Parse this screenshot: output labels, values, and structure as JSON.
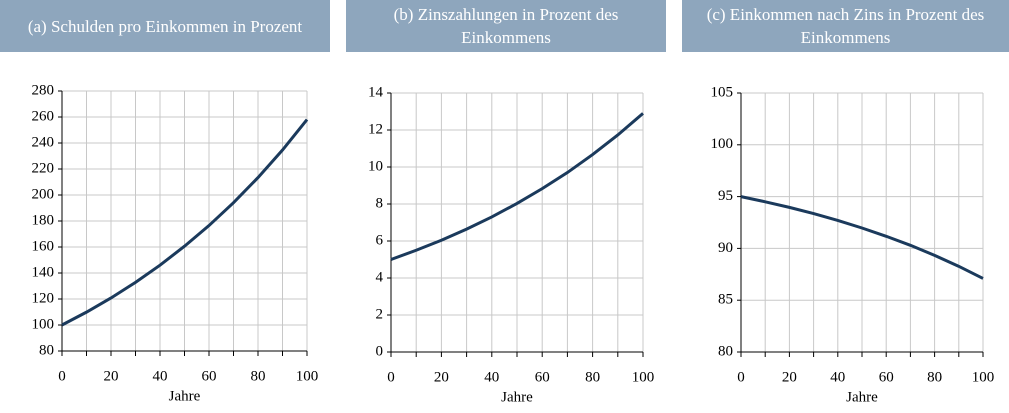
{
  "chart_data": [
    {
      "type": "line",
      "title": "(a) Schulden pro Einkommen in Prozent",
      "xlabel": "Jahre",
      "x": [
        0,
        10,
        20,
        30,
        40,
        50,
        60,
        70,
        80,
        90,
        100
      ],
      "series": [
        {
          "name": "Schulden pro Einkommen",
          "color": "#1b3a5c",
          "values": [
            100,
            109.9,
            120.8,
            132.8,
            146.0,
            160.6,
            176.5,
            194.1,
            213.4,
            234.6,
            258
          ]
        }
      ],
      "xlim": [
        0,
        100
      ],
      "xticks": [
        0,
        20,
        40,
        60,
        80,
        100
      ],
      "x_minor_ticks": [
        10,
        30,
        50,
        70,
        90
      ],
      "ylim": [
        80,
        280
      ],
      "yticks": [
        80,
        100,
        120,
        140,
        160,
        180,
        200,
        220,
        240,
        260,
        280
      ],
      "grid": true
    },
    {
      "type": "line",
      "title": "(b) Zinszahlungen in Prozent des Einkommens",
      "xlabel": "Jahre",
      "x": [
        0,
        10,
        20,
        30,
        40,
        50,
        60,
        70,
        80,
        90,
        100
      ],
      "series": [
        {
          "name": "Zinszahlungen",
          "color": "#1b3a5c",
          "values": [
            5,
            5.5,
            6.04,
            6.64,
            7.3,
            8.03,
            8.83,
            9.7,
            10.67,
            11.73,
            12.9
          ]
        }
      ],
      "xlim": [
        0,
        100
      ],
      "xticks": [
        0,
        20,
        40,
        60,
        80,
        100
      ],
      "x_minor_ticks": [
        10,
        30,
        50,
        70,
        90
      ],
      "ylim": [
        0,
        14
      ],
      "yticks": [
        0,
        2,
        4,
        6,
        8,
        10,
        12,
        14
      ],
      "grid": true
    },
    {
      "type": "line",
      "title": "(c) Einkommen nach Zins in Prozent des Einkommens",
      "xlabel": "Jahre",
      "x": [
        0,
        10,
        20,
        30,
        40,
        50,
        60,
        70,
        80,
        90,
        100
      ],
      "series": [
        {
          "name": "Einkommen nach Zins",
          "color": "#1b3a5c",
          "values": [
            95,
            94.5,
            93.96,
            93.36,
            92.7,
            91.97,
            91.17,
            90.3,
            89.33,
            88.27,
            87.1
          ]
        }
      ],
      "xlim": [
        0,
        100
      ],
      "xticks": [
        0,
        20,
        40,
        60,
        80,
        100
      ],
      "x_minor_ticks": [
        10,
        30,
        50,
        70,
        90
      ],
      "ylim": [
        80,
        105
      ],
      "yticks": [
        80,
        85,
        90,
        95,
        100,
        105
      ],
      "grid": true
    }
  ]
}
